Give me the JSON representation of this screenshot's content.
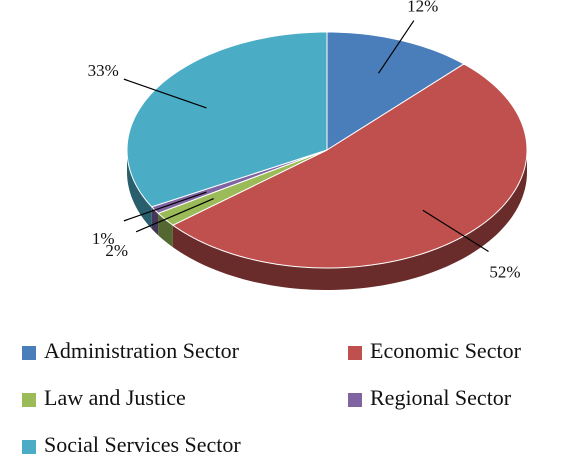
{
  "chart_data": {
    "type": "pie",
    "categories": [
      "Administration Sector",
      "Economic Sector",
      "Law and Justice",
      "Regional Sector",
      "Social Services Sector"
    ],
    "values": [
      12,
      52,
      2,
      1,
      33
    ],
    "value_labels": [
      "12%",
      "52%",
      "2%",
      "1%",
      "33%"
    ],
    "colors": [
      "#4a7ebb",
      "#c0504d",
      "#9bbb59",
      "#8064a2",
      "#4bacc6"
    ],
    "legend": "bottom"
  }
}
